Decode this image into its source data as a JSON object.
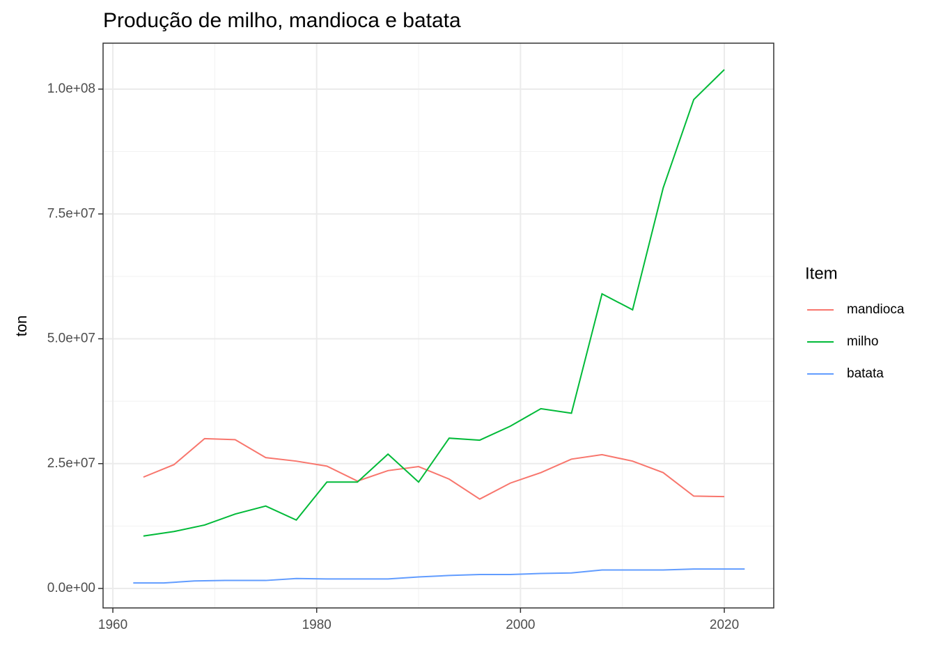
{
  "chart_data": {
    "type": "line",
    "title": "Produção de milho, mandioca e batata",
    "y_label": "ton",
    "legend_title": "Item",
    "legend_position": "right",
    "grid": true,
    "xlim": [
      1959.04,
      2024.85
    ],
    "xticks": [
      1960,
      1980,
      2000,
      2020
    ],
    "x_minor_ticks": [
      1970,
      1990,
      2010
    ],
    "ylim": [
      -3900000,
      109200000
    ],
    "yticks": [
      {
        "value": 0,
        "label": "0.0e+00"
      },
      {
        "value": 25000000,
        "label": "2.5e+07"
      },
      {
        "value": 50000000,
        "label": "5.0e+07"
      },
      {
        "value": 75000000,
        "label": "7.5e+07"
      },
      {
        "value": 100000000,
        "label": "1.0e+08"
      }
    ],
    "y_minor_ticks": [
      12500000,
      37500000,
      62500000,
      87500000
    ],
    "series": [
      {
        "name": "mandioca",
        "color": "#f8766d",
        "x": [
          1963,
          1966,
          1969,
          1972,
          1975,
          1978,
          1981,
          1984,
          1987,
          1990,
          1993,
          1996,
          1999,
          2002,
          2005,
          2008,
          2011,
          2014,
          2017,
          2020
        ],
        "values": [
          22300000,
          24800000,
          30000000,
          29800000,
          26200000,
          25500000,
          24500000,
          21500000,
          23600000,
          24400000,
          21900000,
          17900000,
          21100000,
          23200000,
          25900000,
          26800000,
          25500000,
          23200000,
          18500000,
          18400000
        ]
      },
      {
        "name": "milho",
        "color": "#00ba38",
        "x": [
          1963,
          1966,
          1969,
          1972,
          1975,
          1978,
          1981,
          1984,
          1987,
          1990,
          1993,
          1996,
          1999,
          2002,
          2005,
          2008,
          2011,
          2014,
          2017,
          2020
        ],
        "values": [
          10500000,
          11400000,
          12700000,
          14900000,
          16500000,
          13700000,
          21300000,
          21300000,
          26900000,
          21300000,
          30100000,
          29700000,
          32500000,
          36000000,
          35100000,
          59000000,
          55800000,
          80200000,
          97900000,
          103900000
        ]
      },
      {
        "name": "batata",
        "color": "#619cff",
        "x": [
          1962,
          1965,
          1968,
          1971,
          1975,
          1978,
          1981,
          1984,
          1987,
          1990,
          1993,
          1996,
          1999,
          2002,
          2005,
          2008,
          2011,
          2014,
          2017,
          2020,
          2022
        ],
        "values": [
          1100000,
          1100000,
          1500000,
          1600000,
          1600000,
          2000000,
          1900000,
          1900000,
          1900000,
          2300000,
          2600000,
          2800000,
          2800000,
          3000000,
          3100000,
          3700000,
          3700000,
          3700000,
          3900000,
          3900000,
          3900000
        ]
      }
    ]
  }
}
